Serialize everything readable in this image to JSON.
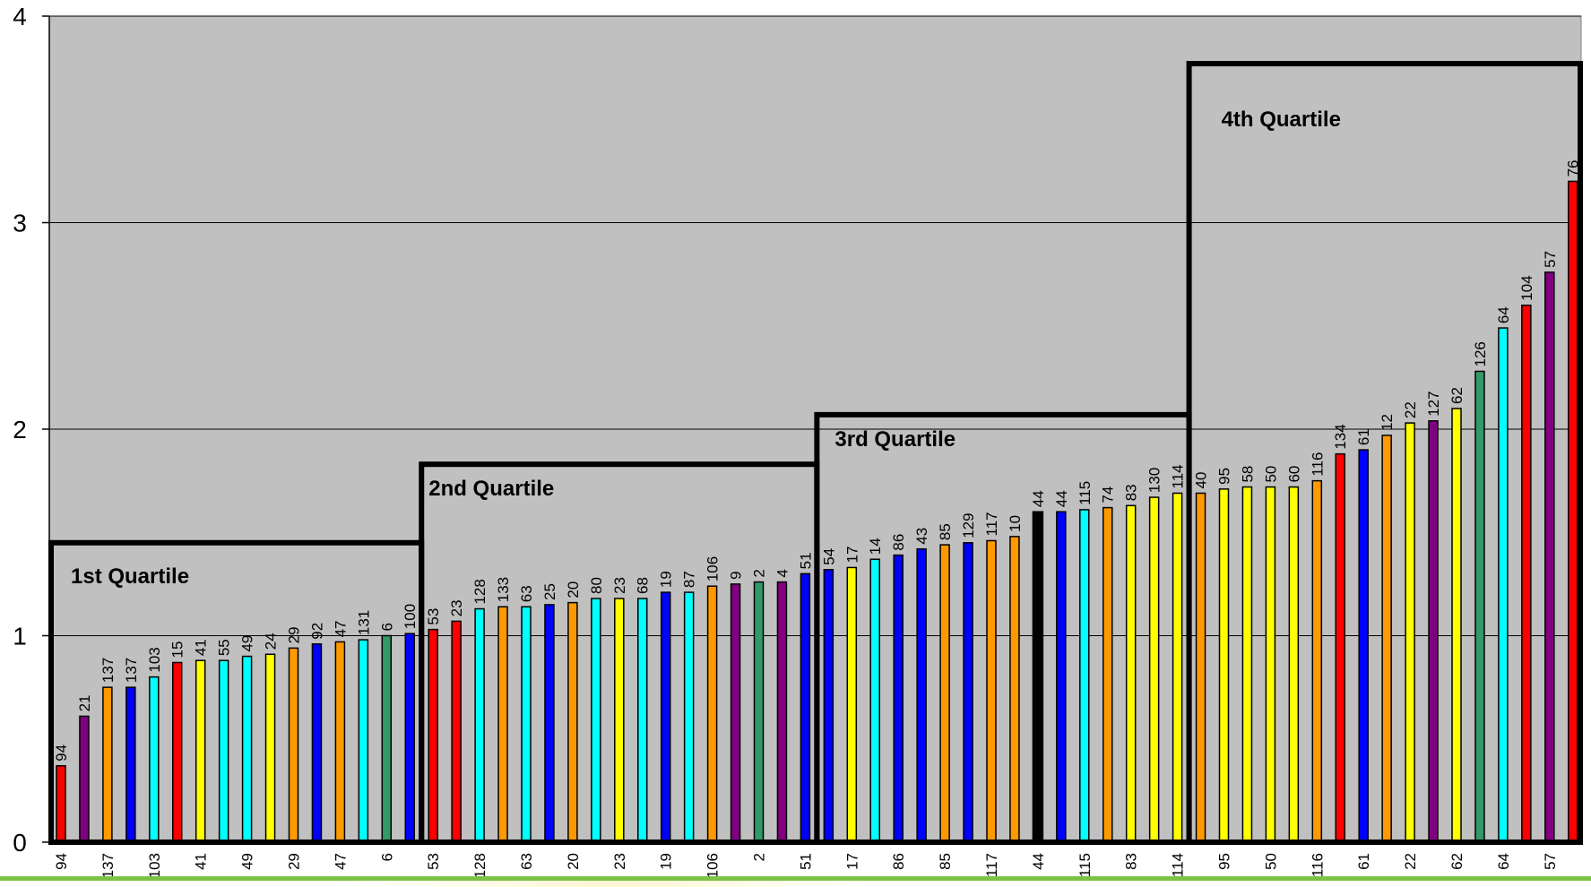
{
  "colors": {
    "plot_background": "#c0c0c0",
    "gridline": "#000000",
    "quartile_border": "#000000",
    "footer_line": "#7dc243",
    "footer_glow": "#ffe680",
    "red": "#ff0000",
    "purple": "#800080",
    "orange": "#ff9900",
    "blue": "#0000ff",
    "cyan": "#00ffff",
    "yellow": "#ffff00",
    "green": "#339966",
    "black": "#000000"
  },
  "chart_data": {
    "type": "bar",
    "title": "",
    "xlabel": "",
    "ylabel": "",
    "ylim": [
      0,
      4
    ],
    "yticks": [
      0,
      1,
      2,
      3,
      4
    ],
    "grid": true,
    "legend": "none",
    "categories": [
      "94",
      "21",
      "137",
      "137",
      "103",
      "15",
      "41",
      "55",
      "49",
      "24",
      "29",
      "92",
      "47",
      "131",
      "6",
      "100",
      "53",
      "23",
      "128",
      "133",
      "63",
      "25",
      "20",
      "80",
      "23",
      "68",
      "19",
      "87",
      "106",
      "9",
      "2",
      "4",
      "51",
      "54",
      "17",
      "14",
      "86",
      "43",
      "85",
      "129",
      "117",
      "10",
      "44",
      "44",
      "115",
      "74",
      "83",
      "130",
      "114",
      "40",
      "95",
      "58",
      "50",
      "60",
      "116",
      "134",
      "61",
      "12",
      "22",
      "127",
      "62",
      "126",
      "64",
      "104",
      "57",
      "76"
    ],
    "x_tick_labels": [
      "94",
      "",
      "137",
      "",
      "103",
      "",
      "41",
      "",
      "49",
      "",
      "29",
      "",
      "47",
      "",
      "6",
      "",
      "53",
      "",
      "128",
      "",
      "63",
      "",
      "20",
      "",
      "23",
      "",
      "19",
      "",
      "106",
      "",
      "2",
      "",
      "51",
      "",
      "17",
      "",
      "86",
      "",
      "85",
      "",
      "117",
      "",
      "44",
      "",
      "115",
      "",
      "83",
      "",
      "114",
      "",
      "95",
      "",
      "50",
      "",
      "116",
      "",
      "61",
      "",
      "22",
      "",
      "62",
      "",
      "64",
      "",
      "57",
      ""
    ],
    "data_labels": [
      "94",
      "21",
      "137",
      "137",
      "103",
      "15",
      "41",
      "55",
      "49",
      "24",
      "29",
      "92",
      "47",
      "131",
      "6",
      "100",
      "53",
      "23",
      "128",
      "133",
      "63",
      "25",
      "20",
      "80",
      "23",
      "68",
      "19",
      "87",
      "106",
      "9",
      "2",
      "4",
      "51",
      "54",
      "17",
      "14",
      "86",
      "43",
      "85",
      "129",
      "117",
      "10",
      "44",
      "44",
      "115",
      "74",
      "83",
      "130",
      "114",
      "40",
      "95",
      "58",
      "50",
      "60",
      "116",
      "134",
      "61",
      "12",
      "22",
      "127",
      "62",
      "126",
      "64",
      "104",
      "57",
      "76"
    ],
    "values": [
      0.37,
      0.61,
      0.75,
      0.75,
      0.8,
      0.87,
      0.88,
      0.88,
      0.9,
      0.91,
      0.94,
      0.96,
      0.97,
      0.98,
      1.0,
      1.01,
      1.03,
      1.07,
      1.13,
      1.14,
      1.14,
      1.15,
      1.16,
      1.18,
      1.18,
      1.18,
      1.21,
      1.21,
      1.24,
      1.25,
      1.26,
      1.26,
      1.3,
      1.32,
      1.33,
      1.37,
      1.39,
      1.42,
      1.44,
      1.45,
      1.46,
      1.48,
      1.6,
      1.6,
      1.61,
      1.62,
      1.63,
      1.67,
      1.69,
      1.69,
      1.71,
      1.72,
      1.72,
      1.72,
      1.75,
      1.88,
      1.9,
      1.97,
      2.03,
      2.04,
      2.1,
      2.28,
      2.49,
      2.6,
      2.76,
      3.2
    ],
    "bar_colors": [
      "red",
      "purple",
      "orange",
      "blue",
      "cyan",
      "red",
      "yellow",
      "cyan",
      "cyan",
      "yellow",
      "orange",
      "blue",
      "orange",
      "cyan",
      "green",
      "blue",
      "red",
      "red",
      "cyan",
      "orange",
      "cyan",
      "blue",
      "orange",
      "cyan",
      "yellow",
      "cyan",
      "blue",
      "cyan",
      "orange",
      "purple",
      "green",
      "purple",
      "blue",
      "blue",
      "yellow",
      "cyan",
      "blue",
      "blue",
      "orange",
      "blue",
      "orange",
      "orange",
      "black",
      "blue",
      "cyan",
      "orange",
      "yellow",
      "yellow",
      "yellow",
      "orange",
      "yellow",
      "yellow",
      "yellow",
      "yellow",
      "orange",
      "red",
      "blue",
      "orange",
      "yellow",
      "purple",
      "yellow",
      "green",
      "cyan",
      "red",
      "purple",
      "red"
    ],
    "quartiles": [
      {
        "label": "1st Quartile",
        "start_index": 0,
        "end_index": 15,
        "height": 1.45
      },
      {
        "label": "2nd Quartile",
        "start_index": 16,
        "end_index": 32,
        "height": 1.83
      },
      {
        "label": "3rd Quartile",
        "start_index": 33,
        "end_index": 48,
        "height": 2.07
      },
      {
        "label": "4th Quartile",
        "start_index": 49,
        "end_index": 65,
        "height": 3.77
      }
    ]
  }
}
